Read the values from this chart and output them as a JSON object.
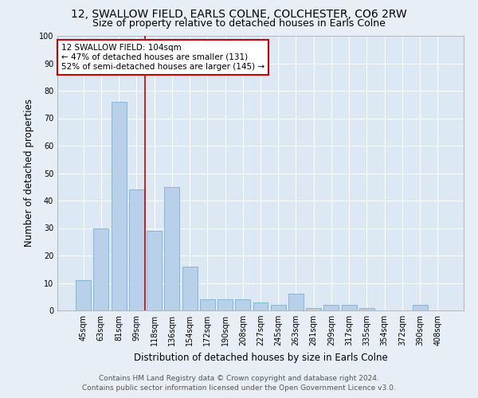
{
  "title": "12, SWALLOW FIELD, EARLS COLNE, COLCHESTER, CO6 2RW",
  "subtitle": "Size of property relative to detached houses in Earls Colne",
  "xlabel": "Distribution of detached houses by size in Earls Colne",
  "ylabel": "Number of detached properties",
  "categories": [
    "45sqm",
    "63sqm",
    "81sqm",
    "99sqm",
    "118sqm",
    "136sqm",
    "154sqm",
    "172sqm",
    "190sqm",
    "208sqm",
    "227sqm",
    "245sqm",
    "263sqm",
    "281sqm",
    "299sqm",
    "317sqm",
    "335sqm",
    "354sqm",
    "372sqm",
    "390sqm",
    "408sqm"
  ],
  "values": [
    11,
    30,
    76,
    44,
    29,
    45,
    16,
    4,
    4,
    4,
    3,
    2,
    6,
    1,
    2,
    2,
    1,
    0,
    0,
    2,
    0
  ],
  "bar_color": "#b8d0ea",
  "bar_edgecolor": "#7aafd4",
  "property_line_x": 3.5,
  "annotation_line1": "12 SWALLOW FIELD: 104sqm",
  "annotation_line2": "← 47% of detached houses are smaller (131)",
  "annotation_line3": "52% of semi-detached houses are larger (145) →",
  "annotation_box_facecolor": "#ffffff",
  "annotation_box_edgecolor": "#cc0000",
  "vline_color": "#cc0000",
  "ylim": [
    0,
    100
  ],
  "yticks": [
    0,
    10,
    20,
    30,
    40,
    50,
    60,
    70,
    80,
    90,
    100
  ],
  "bg_color": "#e8eef5",
  "plot_bg_color": "#dce8f4",
  "grid_color": "#ffffff",
  "footer_line1": "Contains HM Land Registry data © Crown copyright and database right 2024.",
  "footer_line2": "Contains public sector information licensed under the Open Government Licence v3.0.",
  "title_fontsize": 10,
  "subtitle_fontsize": 9,
  "xlabel_fontsize": 8.5,
  "ylabel_fontsize": 8.5,
  "tick_fontsize": 7,
  "annotation_fontsize": 7.5,
  "footer_fontsize": 6.5
}
